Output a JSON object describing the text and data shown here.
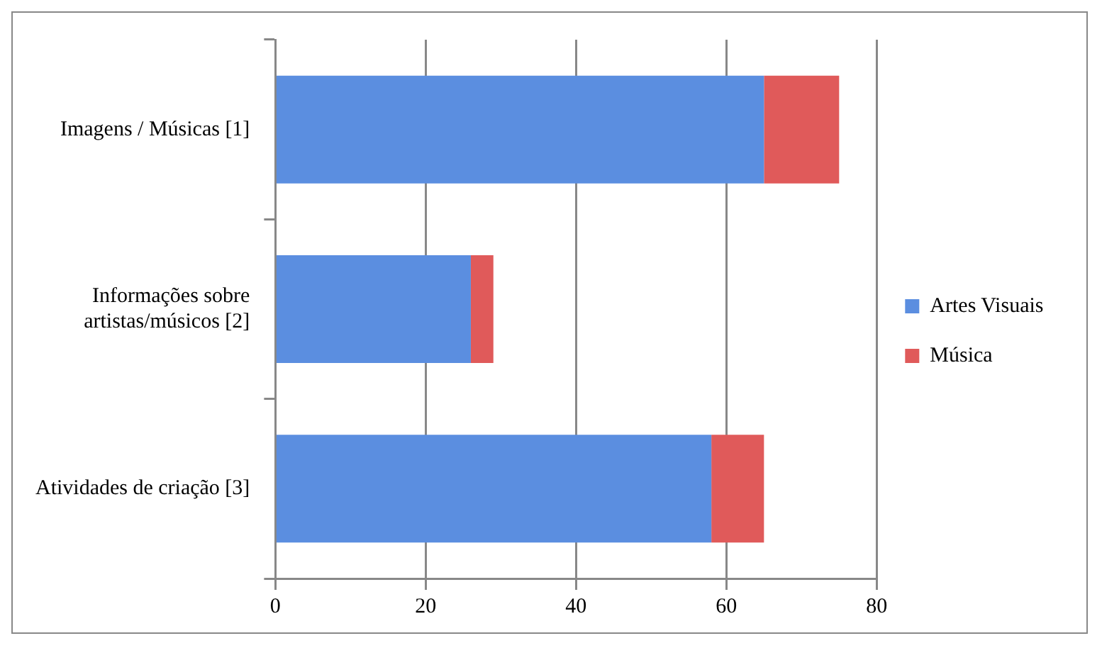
{
  "chart_data": {
    "type": "bar",
    "orientation": "horizontal",
    "stacked": true,
    "categories": [
      "Imagens / Músicas [1]",
      "Informações sobre artistas/músicos [2]",
      "Atividades de criação [3]"
    ],
    "series": [
      {
        "name": "Artes Visuais",
        "color": "#5b8ee0",
        "values": [
          65,
          26,
          58
        ]
      },
      {
        "name": "Música",
        "color": "#e05a5a",
        "values": [
          10,
          3,
          7
        ]
      }
    ],
    "xlim": [
      0,
      80
    ],
    "xticks": [
      0,
      20,
      40,
      60,
      80
    ],
    "grid": "x",
    "legend": "right"
  }
}
